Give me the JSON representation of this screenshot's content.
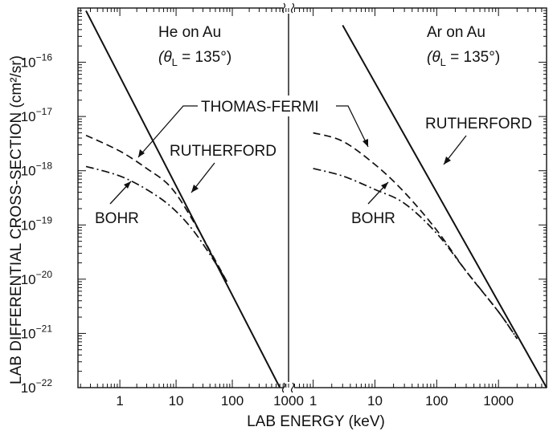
{
  "chart_data": {
    "type": "line",
    "ylabel": "LAB DIFFERENTIAL CROSS-SECTION (cm²/sr)",
    "xlabel": "LAB ENERGY (keV)",
    "y_scale": "log",
    "x_scale": "log",
    "ylim": [
      1e-22,
      1e-15
    ],
    "y_ticks": [
      {
        "value": 1e-22,
        "base": "10",
        "exp": "−22"
      },
      {
        "value": 1e-21,
        "base": "10",
        "exp": "−21"
      },
      {
        "value": 1e-20,
        "base": "10",
        "exp": "−20"
      },
      {
        "value": 1e-19,
        "base": "10",
        "exp": "−19"
      },
      {
        "value": 1e-18,
        "base": "10",
        "exp": "−18"
      },
      {
        "value": 1e-17,
        "base": "10",
        "exp": "−17"
      },
      {
        "value": 1e-16,
        "base": "10",
        "exp": "−16"
      }
    ],
    "panels": [
      {
        "name": "He on Au",
        "title_line1": "He  on  Au",
        "title_line2": "(θ",
        "title_sub": "L",
        "title_line2b": " = 135°)",
        "xlim": [
          0.18,
          1000
        ],
        "x_ticks": [
          {
            "value": 1,
            "label": "1"
          },
          {
            "value": 10,
            "label": "10"
          },
          {
            "value": 100,
            "label": "100"
          },
          {
            "value": 1000,
            "label": "1000"
          }
        ],
        "series": [
          {
            "name": "RUTHERFORD",
            "style": "solid",
            "points": [
              [
                0.25,
                8.9e-16
              ],
              [
                700,
                1e-22
              ]
            ]
          },
          {
            "name": "THOMAS-FERMI",
            "style": "dashed",
            "points": [
              [
                0.25,
                4.5e-18
              ],
              [
                1,
                2.3e-18
              ],
              [
                3,
                1.1e-18
              ],
              [
                8,
                5e-19
              ],
              [
                20,
                1.2e-19
              ],
              [
                50,
                2.2e-20
              ],
              [
                80,
                9e-21
              ]
            ]
          },
          {
            "name": "BOHR",
            "style": "dashdot",
            "points": [
              [
                0.25,
                1.2e-18
              ],
              [
                1,
                8e-19
              ],
              [
                3,
                4.5e-19
              ],
              [
                8,
                2.2e-19
              ],
              [
                20,
                8e-20
              ],
              [
                50,
                2e-20
              ],
              [
                80,
                9e-21
              ]
            ]
          }
        ],
        "annotations": [
          "THOMAS-FERMI",
          "RUTHERFORD",
          "BOHR"
        ]
      },
      {
        "name": "Ar on Au",
        "title_line1": "Ar  on  Au",
        "title_line2": "(θ",
        "title_sub": "L",
        "title_line2b": " = 135°)",
        "xlim": [
          0.4,
          6000
        ],
        "x_ticks": [
          {
            "value": 1,
            "label": "1"
          },
          {
            "value": 10,
            "label": "10"
          },
          {
            "value": 100,
            "label": "100"
          },
          {
            "value": 1000,
            "label": "1000"
          }
        ],
        "series": [
          {
            "name": "RUTHERFORD",
            "style": "solid",
            "points": [
              [
                3,
                4.8e-16
              ],
              [
                6000,
                1e-22
              ]
            ]
          },
          {
            "name": "THOMAS-FERMI",
            "style": "dashed",
            "points": [
              [
                1,
                5e-18
              ],
              [
                3,
                3.5e-18
              ],
              [
                10,
                1.3e-18
              ],
              [
                30,
                4e-19
              ],
              [
                100,
                8e-20
              ],
              [
                300,
                1.4e-20
              ],
              [
                1000,
                2.5e-21
              ],
              [
                2000,
                8e-22
              ]
            ]
          },
          {
            "name": "BOHR",
            "style": "dashdot",
            "points": [
              [
                1,
                1.1e-18
              ],
              [
                3,
                8e-19
              ],
              [
                10,
                4.5e-19
              ],
              [
                30,
                2.5e-19
              ],
              [
                100,
                7e-20
              ],
              [
                300,
                1.4e-20
              ],
              [
                1000,
                2.5e-21
              ],
              [
                2000,
                8e-22
              ]
            ]
          }
        ],
        "annotations": [
          "RUTHERFORD",
          "BOHR"
        ]
      }
    ]
  }
}
